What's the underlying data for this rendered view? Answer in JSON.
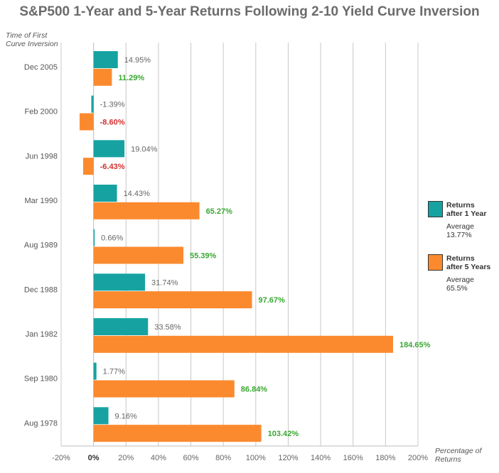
{
  "title": "S&P500 1-Year and 5-Year Returns Following 2-10 Yield Curve Inversion",
  "y_caption": [
    "Time of First",
    "Curve Inversion"
  ],
  "x_caption": [
    "Percentage of",
    "Returns"
  ],
  "colors": {
    "one_year": "#17a2a2",
    "five_year": "#fb8a2e",
    "positive": "#3aa832",
    "negative": "#d32f2f",
    "neutral": "#666666",
    "grid": "#c8c8c8"
  },
  "legend": [
    {
      "title_lines": [
        "Returns",
        "after 1 Year"
      ],
      "avg_lines": [
        "Average",
        "13.77%"
      ],
      "color": "#17a2a2"
    },
    {
      "title_lines": [
        "Returns",
        "after 5 Years"
      ],
      "avg_lines": [
        "Average",
        "65.5%"
      ],
      "color": "#fb8a2e"
    }
  ],
  "chart_data": {
    "type": "bar",
    "orientation": "horizontal",
    "categories": [
      "Dec 2005",
      "Feb 2000",
      "Jun 1998",
      "Mar 1990",
      "Aug 1989",
      "Dec 1988",
      "Jan 1982",
      "Sep 1980",
      "Aug 1978"
    ],
    "series": [
      {
        "name": "Returns after 1 Year",
        "values": [
          14.95,
          -1.39,
          19.04,
          14.43,
          0.66,
          31.74,
          33.58,
          1.77,
          9.16
        ],
        "labels": [
          "14.95%",
          "-1.39%",
          "19.04%",
          "14.43%",
          "0.66%",
          "31.74%",
          "33.58%",
          "1.77%",
          "9.16%"
        ]
      },
      {
        "name": "Returns after 5 Years",
        "values": [
          11.29,
          -8.6,
          -6.43,
          65.27,
          55.39,
          97.67,
          184.65,
          86.84,
          103.42
        ],
        "labels": [
          "11.29%",
          "-8.60%",
          "-6.43%",
          "65.27%",
          "55.39%",
          "97.67%",
          "184.65%",
          "86.84%",
          "103.42%"
        ]
      }
    ],
    "xlim": [
      -20,
      200
    ],
    "xticks": [
      -20,
      0,
      20,
      40,
      60,
      80,
      100,
      120,
      140,
      160,
      180,
      200
    ],
    "xtick_labels": [
      "-20%",
      "0%",
      "20%",
      "40%",
      "60%",
      "80%",
      "100%",
      "120%",
      "140%",
      "160%",
      "180%",
      "200%"
    ],
    "grid": true,
    "legend_position": "right"
  }
}
